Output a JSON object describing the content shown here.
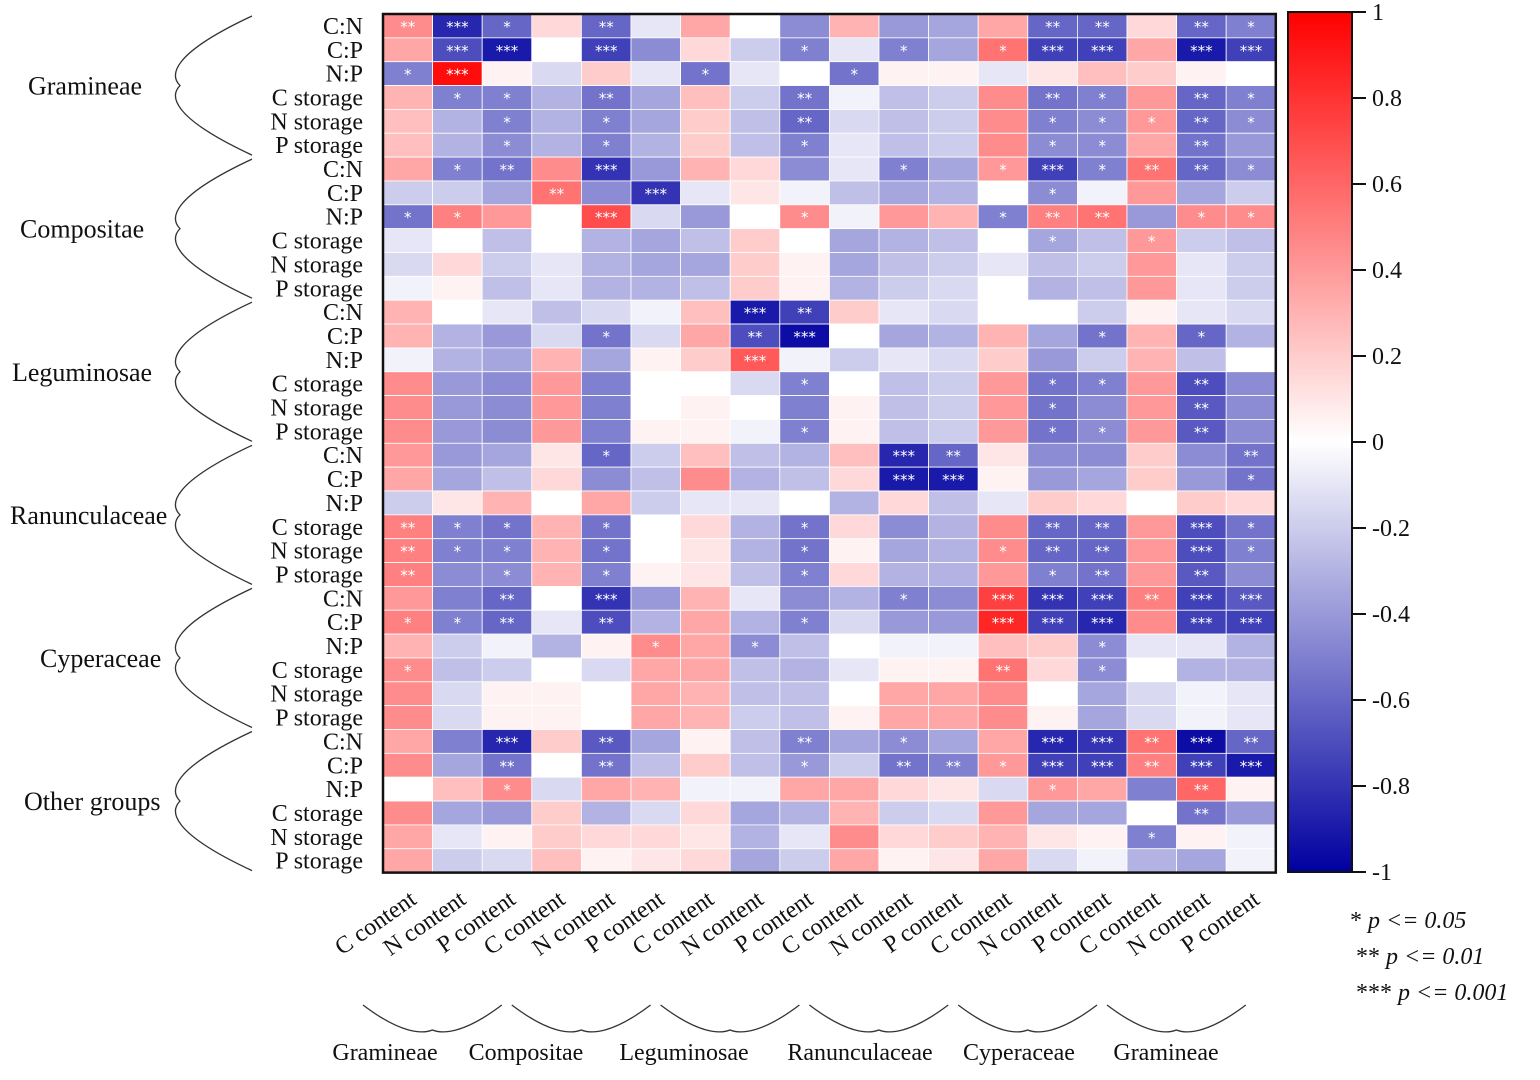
{
  "chart_data": {
    "type": "heatmap",
    "title": "",
    "row_groups": [
      "Gramineae",
      "Compositae",
      "Leguminosae",
      "Ranunculaceae",
      "Cyperaceae",
      "Other groups"
    ],
    "row_labels": [
      "C:N",
      "C:P",
      "N:P",
      "C storage",
      "N storage",
      "P storage"
    ],
    "col_groups": [
      "Gramineae",
      "Compositae",
      "Leguminosae",
      "Ranunculaceae",
      "Cyperaceae",
      "Gramineae"
    ],
    "col_labels": [
      "C content",
      "N content",
      "P content"
    ],
    "colorbar": {
      "min": -1,
      "max": 1,
      "ticks": [
        "1",
        "0.8",
        "0.6",
        "0.4",
        "0.2",
        "0",
        "-0.2",
        "-0.4",
        "-0.6",
        "-0.8",
        "-1"
      ]
    },
    "values": [
      [
        0.45,
        -0.85,
        -0.6,
        0.15,
        -0.6,
        -0.1,
        0.35,
        0.0,
        -0.45,
        0.3,
        -0.4,
        -0.35,
        0.35,
        -0.6,
        -0.6,
        0.15,
        -0.6,
        -0.5
      ],
      [
        0.35,
        -0.7,
        -0.9,
        0.0,
        -0.75,
        -0.45,
        0.15,
        -0.2,
        -0.5,
        -0.1,
        -0.5,
        -0.35,
        0.55,
        -0.75,
        -0.75,
        0.35,
        -0.9,
        -0.75
      ],
      [
        -0.5,
        0.95,
        0.05,
        -0.15,
        0.2,
        -0.1,
        -0.55,
        -0.1,
        0.0,
        -0.55,
        0.05,
        0.05,
        -0.1,
        0.1,
        0.25,
        0.2,
        0.05,
        0.0
      ],
      [
        0.3,
        -0.5,
        -0.5,
        -0.3,
        -0.55,
        -0.35,
        0.25,
        -0.2,
        -0.55,
        -0.05,
        -0.25,
        -0.2,
        0.45,
        -0.55,
        -0.5,
        0.4,
        -0.6,
        -0.5
      ],
      [
        0.25,
        -0.3,
        -0.5,
        -0.3,
        -0.5,
        -0.35,
        0.2,
        -0.25,
        -0.6,
        -0.15,
        -0.25,
        -0.2,
        0.45,
        -0.5,
        -0.45,
        0.4,
        -0.6,
        -0.45
      ],
      [
        0.25,
        -0.3,
        -0.45,
        -0.3,
        -0.5,
        -0.3,
        0.2,
        -0.25,
        -0.5,
        -0.1,
        -0.25,
        -0.2,
        0.45,
        -0.45,
        -0.45,
        0.35,
        -0.55,
        -0.4
      ],
      [
        0.35,
        -0.5,
        -0.55,
        0.45,
        -0.8,
        -0.4,
        0.3,
        0.15,
        -0.45,
        -0.1,
        -0.5,
        -0.35,
        0.4,
        -0.75,
        -0.5,
        0.55,
        -0.6,
        -0.45
      ],
      [
        -0.2,
        -0.2,
        -0.35,
        0.55,
        -0.45,
        -0.8,
        -0.1,
        0.1,
        -0.05,
        -0.25,
        -0.35,
        -0.3,
        0.0,
        -0.45,
        -0.05,
        0.4,
        -0.35,
        -0.2
      ],
      [
        -0.55,
        0.5,
        0.4,
        0.0,
        0.7,
        -0.15,
        -0.4,
        0.0,
        0.45,
        -0.05,
        0.4,
        0.3,
        -0.5,
        0.5,
        0.55,
        -0.4,
        0.45,
        0.45
      ],
      [
        -0.1,
        0.0,
        -0.25,
        0.0,
        -0.3,
        -0.35,
        -0.25,
        0.2,
        0.0,
        -0.35,
        -0.3,
        -0.25,
        0.0,
        -0.35,
        -0.25,
        0.4,
        -0.2,
        -0.25
      ],
      [
        -0.15,
        0.15,
        -0.2,
        -0.1,
        -0.3,
        -0.35,
        -0.35,
        0.2,
        0.05,
        -0.35,
        -0.25,
        -0.2,
        -0.1,
        -0.25,
        -0.2,
        0.4,
        -0.1,
        -0.2
      ],
      [
        -0.05,
        0.05,
        -0.25,
        -0.1,
        -0.3,
        -0.3,
        -0.25,
        0.2,
        0.05,
        -0.3,
        -0.2,
        -0.15,
        0.0,
        -0.3,
        -0.25,
        0.4,
        -0.1,
        -0.2
      ],
      [
        0.3,
        0.0,
        -0.1,
        -0.25,
        -0.15,
        -0.05,
        0.25,
        -0.9,
        -0.75,
        0.2,
        -0.1,
        -0.15,
        0.0,
        0.0,
        -0.2,
        0.05,
        -0.1,
        -0.15
      ],
      [
        0.3,
        -0.3,
        -0.4,
        -0.15,
        -0.55,
        -0.15,
        0.35,
        -0.7,
        -0.95,
        0.0,
        -0.35,
        -0.3,
        0.3,
        -0.35,
        -0.55,
        0.3,
        -0.6,
        -0.3
      ],
      [
        -0.05,
        -0.3,
        -0.35,
        0.3,
        -0.35,
        0.05,
        0.2,
        0.65,
        -0.05,
        -0.2,
        -0.1,
        -0.15,
        0.2,
        -0.4,
        -0.2,
        0.3,
        -0.25,
        0.0
      ],
      [
        0.45,
        -0.4,
        -0.45,
        0.4,
        -0.5,
        0.0,
        0.0,
        -0.15,
        -0.5,
        0.0,
        -0.25,
        -0.2,
        0.4,
        -0.55,
        -0.5,
        0.4,
        -0.7,
        -0.45
      ],
      [
        0.45,
        -0.4,
        -0.45,
        0.4,
        -0.5,
        0.0,
        0.05,
        0.0,
        -0.5,
        0.05,
        -0.25,
        -0.2,
        0.4,
        -0.55,
        -0.45,
        0.4,
        -0.65,
        -0.45
      ],
      [
        0.45,
        -0.4,
        -0.45,
        0.4,
        -0.5,
        0.05,
        0.05,
        -0.05,
        -0.5,
        0.05,
        -0.25,
        -0.2,
        0.4,
        -0.55,
        -0.45,
        0.4,
        -0.65,
        -0.45
      ],
      [
        0.4,
        -0.4,
        -0.35,
        0.1,
        -0.6,
        -0.2,
        0.25,
        -0.25,
        -0.3,
        0.25,
        -0.85,
        -0.6,
        0.1,
        -0.45,
        -0.45,
        0.2,
        -0.45,
        -0.55
      ],
      [
        0.35,
        -0.35,
        -0.25,
        0.15,
        -0.45,
        -0.25,
        0.45,
        -0.3,
        -0.25,
        0.15,
        -0.9,
        -0.9,
        0.05,
        -0.4,
        -0.35,
        0.2,
        -0.4,
        -0.55
      ],
      [
        -0.2,
        0.1,
        0.3,
        0.0,
        0.35,
        -0.2,
        -0.1,
        -0.1,
        0.0,
        -0.3,
        0.15,
        -0.25,
        -0.1,
        0.2,
        0.15,
        0.0,
        0.2,
        0.15
      ],
      [
        0.5,
        -0.5,
        -0.55,
        0.3,
        -0.55,
        0.0,
        0.15,
        -0.3,
        -0.55,
        0.15,
        -0.45,
        -0.3,
        0.45,
        -0.6,
        -0.6,
        0.4,
        -0.7,
        -0.55
      ],
      [
        0.5,
        -0.5,
        -0.5,
        0.3,
        -0.55,
        0.0,
        0.1,
        -0.3,
        -0.55,
        0.05,
        -0.35,
        -0.3,
        0.45,
        -0.6,
        -0.6,
        0.4,
        -0.7,
        -0.5
      ],
      [
        0.5,
        -0.45,
        -0.45,
        0.3,
        -0.5,
        0.05,
        0.1,
        -0.25,
        -0.5,
        0.15,
        -0.3,
        -0.3,
        0.4,
        -0.5,
        -0.55,
        0.4,
        -0.65,
        -0.45
      ],
      [
        0.4,
        -0.5,
        -0.6,
        0.0,
        -0.8,
        -0.4,
        0.3,
        -0.1,
        -0.45,
        -0.3,
        -0.5,
        -0.45,
        0.75,
        -0.8,
        -0.75,
        0.5,
        -0.75,
        -0.65
      ],
      [
        0.5,
        -0.5,
        -0.6,
        -0.1,
        -0.7,
        -0.3,
        0.35,
        -0.3,
        -0.5,
        -0.15,
        -0.4,
        -0.4,
        0.85,
        -0.75,
        -0.85,
        0.45,
        -0.75,
        -0.75
      ],
      [
        0.3,
        -0.2,
        -0.05,
        -0.3,
        0.05,
        0.45,
        0.35,
        -0.45,
        -0.25,
        0.0,
        -0.05,
        -0.05,
        0.25,
        0.2,
        -0.45,
        -0.1,
        -0.1,
        -0.3
      ],
      [
        0.45,
        -0.25,
        -0.2,
        0.0,
        -0.15,
        0.35,
        0.35,
        -0.25,
        -0.3,
        -0.1,
        0.05,
        0.05,
        0.55,
        0.15,
        -0.45,
        0.0,
        -0.3,
        -0.3
      ],
      [
        0.45,
        -0.15,
        0.05,
        0.05,
        0.0,
        0.35,
        0.3,
        -0.25,
        -0.25,
        0.0,
        0.35,
        0.35,
        0.45,
        0.0,
        -0.35,
        -0.15,
        -0.05,
        -0.1
      ],
      [
        0.45,
        -0.15,
        0.05,
        0.05,
        0.0,
        0.35,
        0.3,
        -0.2,
        -0.25,
        0.05,
        0.35,
        0.35,
        0.45,
        0.05,
        -0.35,
        -0.15,
        -0.05,
        -0.1
      ],
      [
        0.35,
        -0.5,
        -0.85,
        0.2,
        -0.65,
        -0.35,
        0.05,
        -0.25,
        -0.5,
        -0.35,
        -0.45,
        -0.35,
        0.35,
        -0.85,
        -0.8,
        0.55,
        -0.95,
        -0.6
      ],
      [
        0.45,
        -0.35,
        -0.55,
        0.0,
        -0.55,
        -0.25,
        0.2,
        -0.25,
        -0.4,
        -0.2,
        -0.55,
        -0.5,
        0.4,
        -0.75,
        -0.75,
        0.5,
        -0.75,
        -0.9
      ],
      [
        0.0,
        0.25,
        0.45,
        -0.15,
        0.35,
        0.3,
        -0.05,
        -0.05,
        0.35,
        0.35,
        0.15,
        0.1,
        -0.15,
        0.4,
        0.35,
        -0.5,
        0.6,
        0.05
      ],
      [
        0.45,
        -0.35,
        -0.4,
        0.2,
        -0.3,
        -0.15,
        0.15,
        -0.35,
        -0.3,
        0.3,
        -0.2,
        -0.15,
        0.4,
        -0.35,
        -0.35,
        0.0,
        -0.55,
        -0.4
      ],
      [
        0.35,
        -0.1,
        0.05,
        0.2,
        0.15,
        0.15,
        0.1,
        -0.3,
        -0.1,
        0.45,
        0.15,
        0.2,
        0.3,
        0.1,
        0.05,
        -0.5,
        0.05,
        -0.05
      ],
      [
        0.35,
        -0.2,
        -0.15,
        0.25,
        0.05,
        0.1,
        0.15,
        -0.35,
        -0.2,
        0.35,
        0.05,
        0.1,
        0.35,
        -0.15,
        -0.05,
        -0.3,
        -0.35,
        -0.05
      ]
    ],
    "significance": [
      [
        "**",
        "***",
        "*",
        "",
        "**",
        "",
        "",
        "",
        "",
        "",
        "",
        "",
        "",
        "**",
        "**",
        "",
        "**",
        "*"
      ],
      [
        "",
        "***",
        "***",
        "",
        "***",
        "",
        "",
        "",
        "*",
        "",
        "*",
        "",
        "*",
        "***",
        "***",
        "",
        "***",
        "***"
      ],
      [
        "*",
        "***",
        "",
        "",
        "",
        "",
        "*",
        "",
        "",
        "*",
        "",
        "",
        "",
        "",
        "",
        "",
        "",
        ""
      ],
      [
        "",
        "*",
        "*",
        "",
        "**",
        "",
        "",
        "",
        "**",
        "",
        "",
        "",
        "",
        "**",
        "*",
        "",
        "**",
        "*"
      ],
      [
        "",
        "",
        "*",
        "",
        "*",
        "",
        "",
        "",
        "**",
        "",
        "",
        "",
        "",
        "*",
        "*",
        "*",
        "**",
        "*"
      ],
      [
        "",
        "",
        "*",
        "",
        "*",
        "",
        "",
        "",
        "*",
        "",
        "",
        "",
        "",
        "*",
        "*",
        "",
        "**",
        ""
      ],
      [
        "",
        "*",
        "**",
        "",
        "***",
        "",
        "",
        "",
        "",
        "",
        "*",
        "",
        "*",
        "***",
        "*",
        "**",
        "**",
        "*"
      ],
      [
        "",
        "",
        "",
        "**",
        "",
        "***",
        "",
        "",
        "",
        "",
        "",
        "",
        "",
        "*",
        "",
        "",
        "",
        ""
      ],
      [
        "*",
        "*",
        "",
        "",
        "***",
        "",
        "",
        "",
        "*",
        "",
        "",
        "",
        "*",
        "**",
        "**",
        "",
        "*",
        "*"
      ],
      [
        "",
        "",
        "",
        "",
        "",
        "",
        "",
        "",
        "",
        "",
        "",
        "",
        "",
        "*",
        "",
        "*",
        "",
        ""
      ],
      [
        "",
        "",
        "",
        "",
        "",
        "",
        "",
        "",
        "",
        "",
        "",
        "",
        "",
        "",
        "",
        "",
        "",
        ""
      ],
      [
        "",
        "",
        "",
        "",
        "",
        "",
        "",
        "",
        "",
        "",
        "",
        "",
        "",
        "",
        "",
        "",
        "",
        ""
      ],
      [
        "",
        "",
        "",
        "",
        "",
        "",
        "",
        "***",
        "**",
        "",
        "",
        "",
        "",
        "",
        "",
        "",
        "",
        ""
      ],
      [
        "",
        "",
        "",
        "",
        "*",
        "",
        "",
        "**",
        "***",
        "",
        "",
        "",
        "",
        "",
        "*",
        "",
        "*",
        ""
      ],
      [
        "",
        "",
        "",
        "",
        "",
        "",
        "",
        "***",
        "",
        "",
        "",
        "",
        "",
        "",
        "",
        "",
        "",
        ""
      ],
      [
        "",
        "",
        "",
        "",
        "",
        "",
        "",
        "",
        "*",
        "",
        "",
        "",
        "",
        "*",
        "*",
        "",
        "**",
        ""
      ],
      [
        "",
        "",
        "",
        "",
        "",
        "",
        "",
        "",
        "",
        "",
        "",
        "",
        "",
        "*",
        "",
        "",
        "**",
        ""
      ],
      [
        "",
        "",
        "",
        "",
        "",
        "",
        "",
        "",
        "*",
        "",
        "",
        "",
        "",
        "*",
        "*",
        "",
        "**",
        ""
      ],
      [
        "",
        "",
        "",
        "",
        "*",
        "",
        "",
        "",
        "",
        "",
        "***",
        "**",
        "",
        "",
        "",
        "",
        "",
        "**"
      ],
      [
        "",
        "",
        "",
        "",
        "",
        "",
        "",
        "",
        "",
        "",
        "***",
        "***",
        "",
        "",
        "",
        "",
        "",
        "*"
      ],
      [
        "",
        "",
        "",
        "",
        "",
        "",
        "",
        "",
        "",
        "",
        "",
        "",
        "",
        "",
        "",
        "",
        "",
        ""
      ],
      [
        "**",
        "*",
        "*",
        "",
        "*",
        "",
        "",
        "",
        "*",
        "",
        "",
        "",
        "",
        "**",
        "**",
        "",
        "***",
        "*"
      ],
      [
        "**",
        "*",
        "*",
        "",
        "*",
        "",
        "",
        "",
        "*",
        "",
        "",
        "",
        "*",
        "**",
        "**",
        "",
        "***",
        "*"
      ],
      [
        "**",
        "",
        "*",
        "",
        "*",
        "",
        "",
        "",
        "*",
        "",
        "",
        "",
        "",
        "*",
        "**",
        "",
        "**",
        ""
      ],
      [
        "",
        "",
        "**",
        "",
        "***",
        "",
        "",
        "",
        "",
        "",
        "*",
        "",
        "***",
        "***",
        "***",
        "**",
        "***",
        "***"
      ],
      [
        "*",
        "*",
        "**",
        "",
        "**",
        "",
        "",
        "",
        "*",
        "",
        "",
        "",
        "***",
        "***",
        "***",
        "",
        "***",
        "***"
      ],
      [
        "",
        "",
        "",
        "",
        "",
        "*",
        "",
        "*",
        "",
        "",
        "",
        "",
        "",
        "",
        "*",
        "",
        "",
        ""
      ],
      [
        "*",
        "",
        "",
        "",
        "",
        "",
        "",
        "",
        "",
        "",
        "",
        "",
        "**",
        "",
        "*",
        "",
        "",
        ""
      ],
      [
        "",
        "",
        "",
        "",
        "",
        "",
        "",
        "",
        "",
        "",
        "",
        "",
        "",
        "",
        "",
        "",
        "",
        ""
      ],
      [
        "",
        "",
        "",
        "",
        "",
        "",
        "",
        "",
        "",
        "",
        "",
        "",
        "",
        "",
        "",
        "",
        "",
        ""
      ],
      [
        "",
        "",
        "***",
        "",
        "**",
        "",
        "",
        "",
        "**",
        "",
        "*",
        "",
        "",
        "***",
        "***",
        "**",
        "***",
        "**"
      ],
      [
        "",
        "",
        "**",
        "",
        "**",
        "",
        "",
        "",
        "*",
        "",
        "**",
        "**",
        "*",
        "***",
        "***",
        "**",
        "***",
        "***"
      ],
      [
        "",
        "",
        "*",
        "",
        "",
        "",
        "",
        "",
        "",
        "",
        "",
        "",
        "",
        "*",
        "",
        "",
        "**",
        ""
      ],
      [
        "",
        "",
        "",
        "",
        "",
        "",
        "",
        "",
        "",
        "",
        "",
        "",
        "",
        "",
        "",
        "",
        "**",
        ""
      ],
      [
        "",
        "",
        "",
        "",
        "",
        "",
        "",
        "",
        "",
        "",
        "",
        "",
        "",
        "",
        "",
        "*",
        "",
        ""
      ],
      [
        "",
        "",
        "",
        "",
        "",
        "",
        "",
        "",
        "",
        "",
        "",
        "",
        "",
        "",
        "",
        "",
        "",
        ""
      ]
    ],
    "significance_legend": [
      {
        "stars": "*",
        "text": "p <= 0.05"
      },
      {
        "stars": "**",
        "text": "p <= 0.01"
      },
      {
        "stars": "***",
        "text": "p <= 0.001"
      }
    ],
    "color_scale": {
      "negative": "#0000a0",
      "zero": "#ffffff",
      "positive": "#ff0000"
    }
  }
}
